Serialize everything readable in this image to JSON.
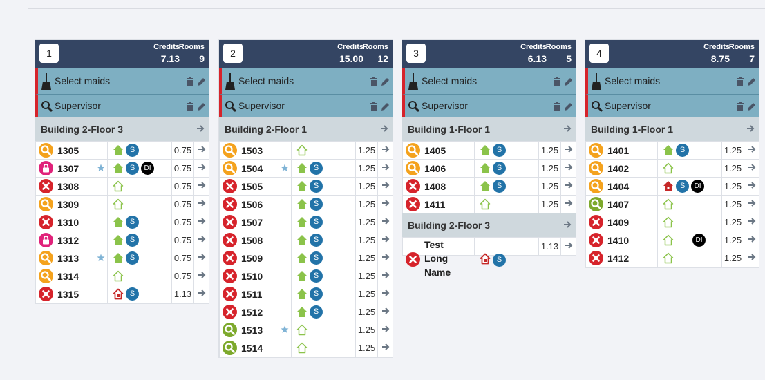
{
  "labels": {
    "credits": "Credits",
    "rooms": "Rooms",
    "select_maids": "Select maids",
    "supervisor": "Supervisor"
  },
  "colors": {
    "header": "#344563",
    "assign": "#7eafc2",
    "alert": "#d6232b",
    "building": "#cfd8dd",
    "badge_s": "#2273a8"
  },
  "cards": [
    {
      "number": "1",
      "credits": "7.13",
      "rooms": "9",
      "sections": [
        {
          "building": "Building 2-Floor 3",
          "rows": [
            {
              "room": "1305",
              "status": "inspect",
              "star": false,
              "house": "filled",
              "badges": [
                "S"
              ],
              "credit": "0.75"
            },
            {
              "room": "1307",
              "status": "locked",
              "star": true,
              "house": "filled",
              "badges": [
                "S",
                "DI"
              ],
              "credit": "0.75"
            },
            {
              "room": "1308",
              "status": "dirty",
              "star": false,
              "house": "outline",
              "badges": [],
              "credit": "0.75"
            },
            {
              "room": "1309",
              "status": "inspect",
              "star": false,
              "house": "outline",
              "badges": [],
              "credit": "0.75"
            },
            {
              "room": "1310",
              "status": "dirty",
              "star": false,
              "house": "filled",
              "badges": [
                "S"
              ],
              "credit": "0.75"
            },
            {
              "room": "1312",
              "status": "locked",
              "star": false,
              "house": "filled",
              "badges": [
                "S"
              ],
              "credit": "0.75"
            },
            {
              "room": "1313",
              "status": "inspect",
              "star": true,
              "house": "filled",
              "badges": [
                "S"
              ],
              "credit": "0.75"
            },
            {
              "room": "1314",
              "status": "inspect",
              "star": false,
              "house": "outline",
              "badges": [],
              "credit": "0.75"
            },
            {
              "room": "1315",
              "status": "dirty",
              "star": false,
              "house": "red",
              "badges": [
                "S"
              ],
              "credit": "1.13"
            }
          ]
        }
      ]
    },
    {
      "number": "2",
      "credits": "15.00",
      "rooms": "12",
      "sections": [
        {
          "building": "Building 2-Floor 1",
          "rows": [
            {
              "room": "1503",
              "status": "inspect",
              "star": false,
              "house": "outline",
              "badges": [],
              "credit": "1.25"
            },
            {
              "room": "1504",
              "status": "inspect",
              "star": true,
              "house": "filled",
              "badges": [
                "S"
              ],
              "credit": "1.25"
            },
            {
              "room": "1505",
              "status": "dirty",
              "star": false,
              "house": "filled",
              "badges": [
                "S"
              ],
              "credit": "1.25"
            },
            {
              "room": "1506",
              "status": "dirty",
              "star": false,
              "house": "filled",
              "badges": [
                "S"
              ],
              "credit": "1.25"
            },
            {
              "room": "1507",
              "status": "dirty",
              "star": false,
              "house": "filled",
              "badges": [
                "S"
              ],
              "credit": "1.25"
            },
            {
              "room": "1508",
              "status": "dirty",
              "star": false,
              "house": "filled",
              "badges": [
                "S"
              ],
              "credit": "1.25"
            },
            {
              "room": "1509",
              "status": "dirty",
              "star": false,
              "house": "filled",
              "badges": [
                "S"
              ],
              "credit": "1.25"
            },
            {
              "room": "1510",
              "status": "dirty",
              "star": false,
              "house": "filled",
              "badges": [
                "S"
              ],
              "credit": "1.25"
            },
            {
              "room": "1511",
              "status": "dirty",
              "star": false,
              "house": "filled",
              "badges": [
                "S"
              ],
              "credit": "1.25"
            },
            {
              "room": "1512",
              "status": "dirty",
              "star": false,
              "house": "filled",
              "badges": [
                "S"
              ],
              "credit": "1.25"
            },
            {
              "room": "1513",
              "status": "clean",
              "star": true,
              "house": "outline",
              "badges": [],
              "credit": "1.25"
            },
            {
              "room": "1514",
              "status": "clean",
              "star": false,
              "house": "outline",
              "badges": [],
              "credit": "1.25"
            }
          ]
        }
      ]
    },
    {
      "number": "3",
      "credits": "6.13",
      "rooms": "5",
      "sections": [
        {
          "building": "Building 1-Floor 1",
          "rows": [
            {
              "room": "1405",
              "status": "inspect",
              "star": false,
              "house": "filled",
              "badges": [
                "S"
              ],
              "credit": "1.25"
            },
            {
              "room": "1406",
              "status": "inspect",
              "star": false,
              "house": "filled",
              "badges": [
                "S"
              ],
              "credit": "1.25"
            },
            {
              "room": "1408",
              "status": "dirty",
              "star": false,
              "house": "filled",
              "badges": [
                "S"
              ],
              "credit": "1.25"
            },
            {
              "room": "1411",
              "status": "dirty",
              "star": false,
              "house": "outline",
              "badges": [],
              "credit": "1.25"
            }
          ]
        },
        {
          "building": "Building 2-Floor 3",
          "rows": [
            {
              "room": "Test\nLong\nName",
              "status": "dirty",
              "star": false,
              "house": "red",
              "badges": [
                "S"
              ],
              "credit": "1.13",
              "tall": true
            }
          ]
        }
      ]
    },
    {
      "number": "4",
      "credits": "8.75",
      "rooms": "7",
      "sections": [
        {
          "building": "Building 1-Floor 1",
          "rows": [
            {
              "room": "1401",
              "status": "inspect",
              "star": false,
              "house": "filled",
              "badges": [
                "S"
              ],
              "credit": "1.25"
            },
            {
              "room": "1402",
              "status": "inspect",
              "star": false,
              "house": "outline",
              "badges": [],
              "credit": "1.25"
            },
            {
              "room": "1404",
              "status": "inspect",
              "star": false,
              "house": "redfilled",
              "badges": [
                "S",
                "DI"
              ],
              "credit": "1.25"
            },
            {
              "room": "1407",
              "status": "clean",
              "star": false,
              "house": "outline",
              "badges": [],
              "credit": "1.25"
            },
            {
              "room": "1409",
              "status": "dirty",
              "star": false,
              "house": "outline",
              "badges": [],
              "credit": "1.25"
            },
            {
              "room": "1410",
              "status": "dirty",
              "star": false,
              "house": "outline",
              "badges": [
                "DI"
              ],
              "credit": "1.25"
            },
            {
              "room": "1412",
              "status": "dirty",
              "star": false,
              "house": "outline",
              "badges": [],
              "credit": "1.25"
            }
          ]
        }
      ]
    }
  ]
}
